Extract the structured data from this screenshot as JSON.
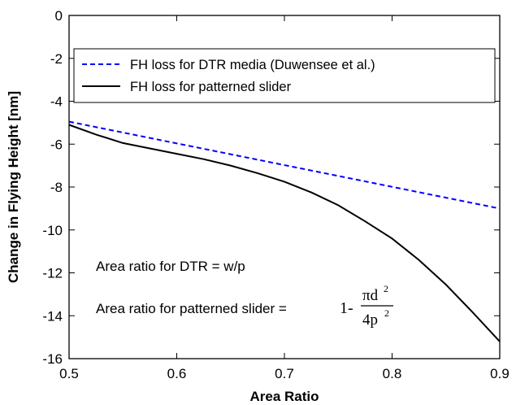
{
  "chart_data": {
    "type": "line",
    "xlabel": "Area Ratio",
    "ylabel": "Change in Flying Height [nm]",
    "xlim": [
      0.5,
      0.9
    ],
    "ylim": [
      -16,
      0
    ],
    "x_ticks": [
      "0.5",
      "0.6",
      "0.7",
      "0.8",
      "0.9"
    ],
    "y_ticks": [
      "0",
      "-2",
      "-4",
      "-6",
      "-8",
      "-10",
      "-12",
      "-14",
      "-16"
    ],
    "grid": false,
    "legend_position": "top",
    "series": [
      {
        "name": "FH loss for DTR media (Duwensee et al.)",
        "color": "#0000ff",
        "style": "dashed",
        "x": [
          0.5,
          0.9
        ],
        "y": [
          -4.95,
          -9.0
        ]
      },
      {
        "name": "FH loss for patterned slider",
        "color": "#000000",
        "style": "solid",
        "x": [
          0.5,
          0.525,
          0.55,
          0.575,
          0.6,
          0.625,
          0.65,
          0.675,
          0.7,
          0.725,
          0.75,
          0.775,
          0.8,
          0.825,
          0.85,
          0.875,
          0.9
        ],
        "y": [
          -5.1,
          -5.55,
          -5.95,
          -6.2,
          -6.45,
          -6.7,
          -7.0,
          -7.35,
          -7.75,
          -8.25,
          -8.85,
          -9.6,
          -10.4,
          -11.4,
          -12.55,
          -13.85,
          -15.2
        ]
      }
    ],
    "annotations": {
      "dtr": "Area ratio for DTR = w/p",
      "patterned_prefix": "Area ratio for patterned slider =",
      "formula_one_minus": "1-",
      "formula_numerator": "πd",
      "formula_num_exp": "2",
      "formula_denominator": "4p",
      "formula_den_exp": "2"
    }
  }
}
